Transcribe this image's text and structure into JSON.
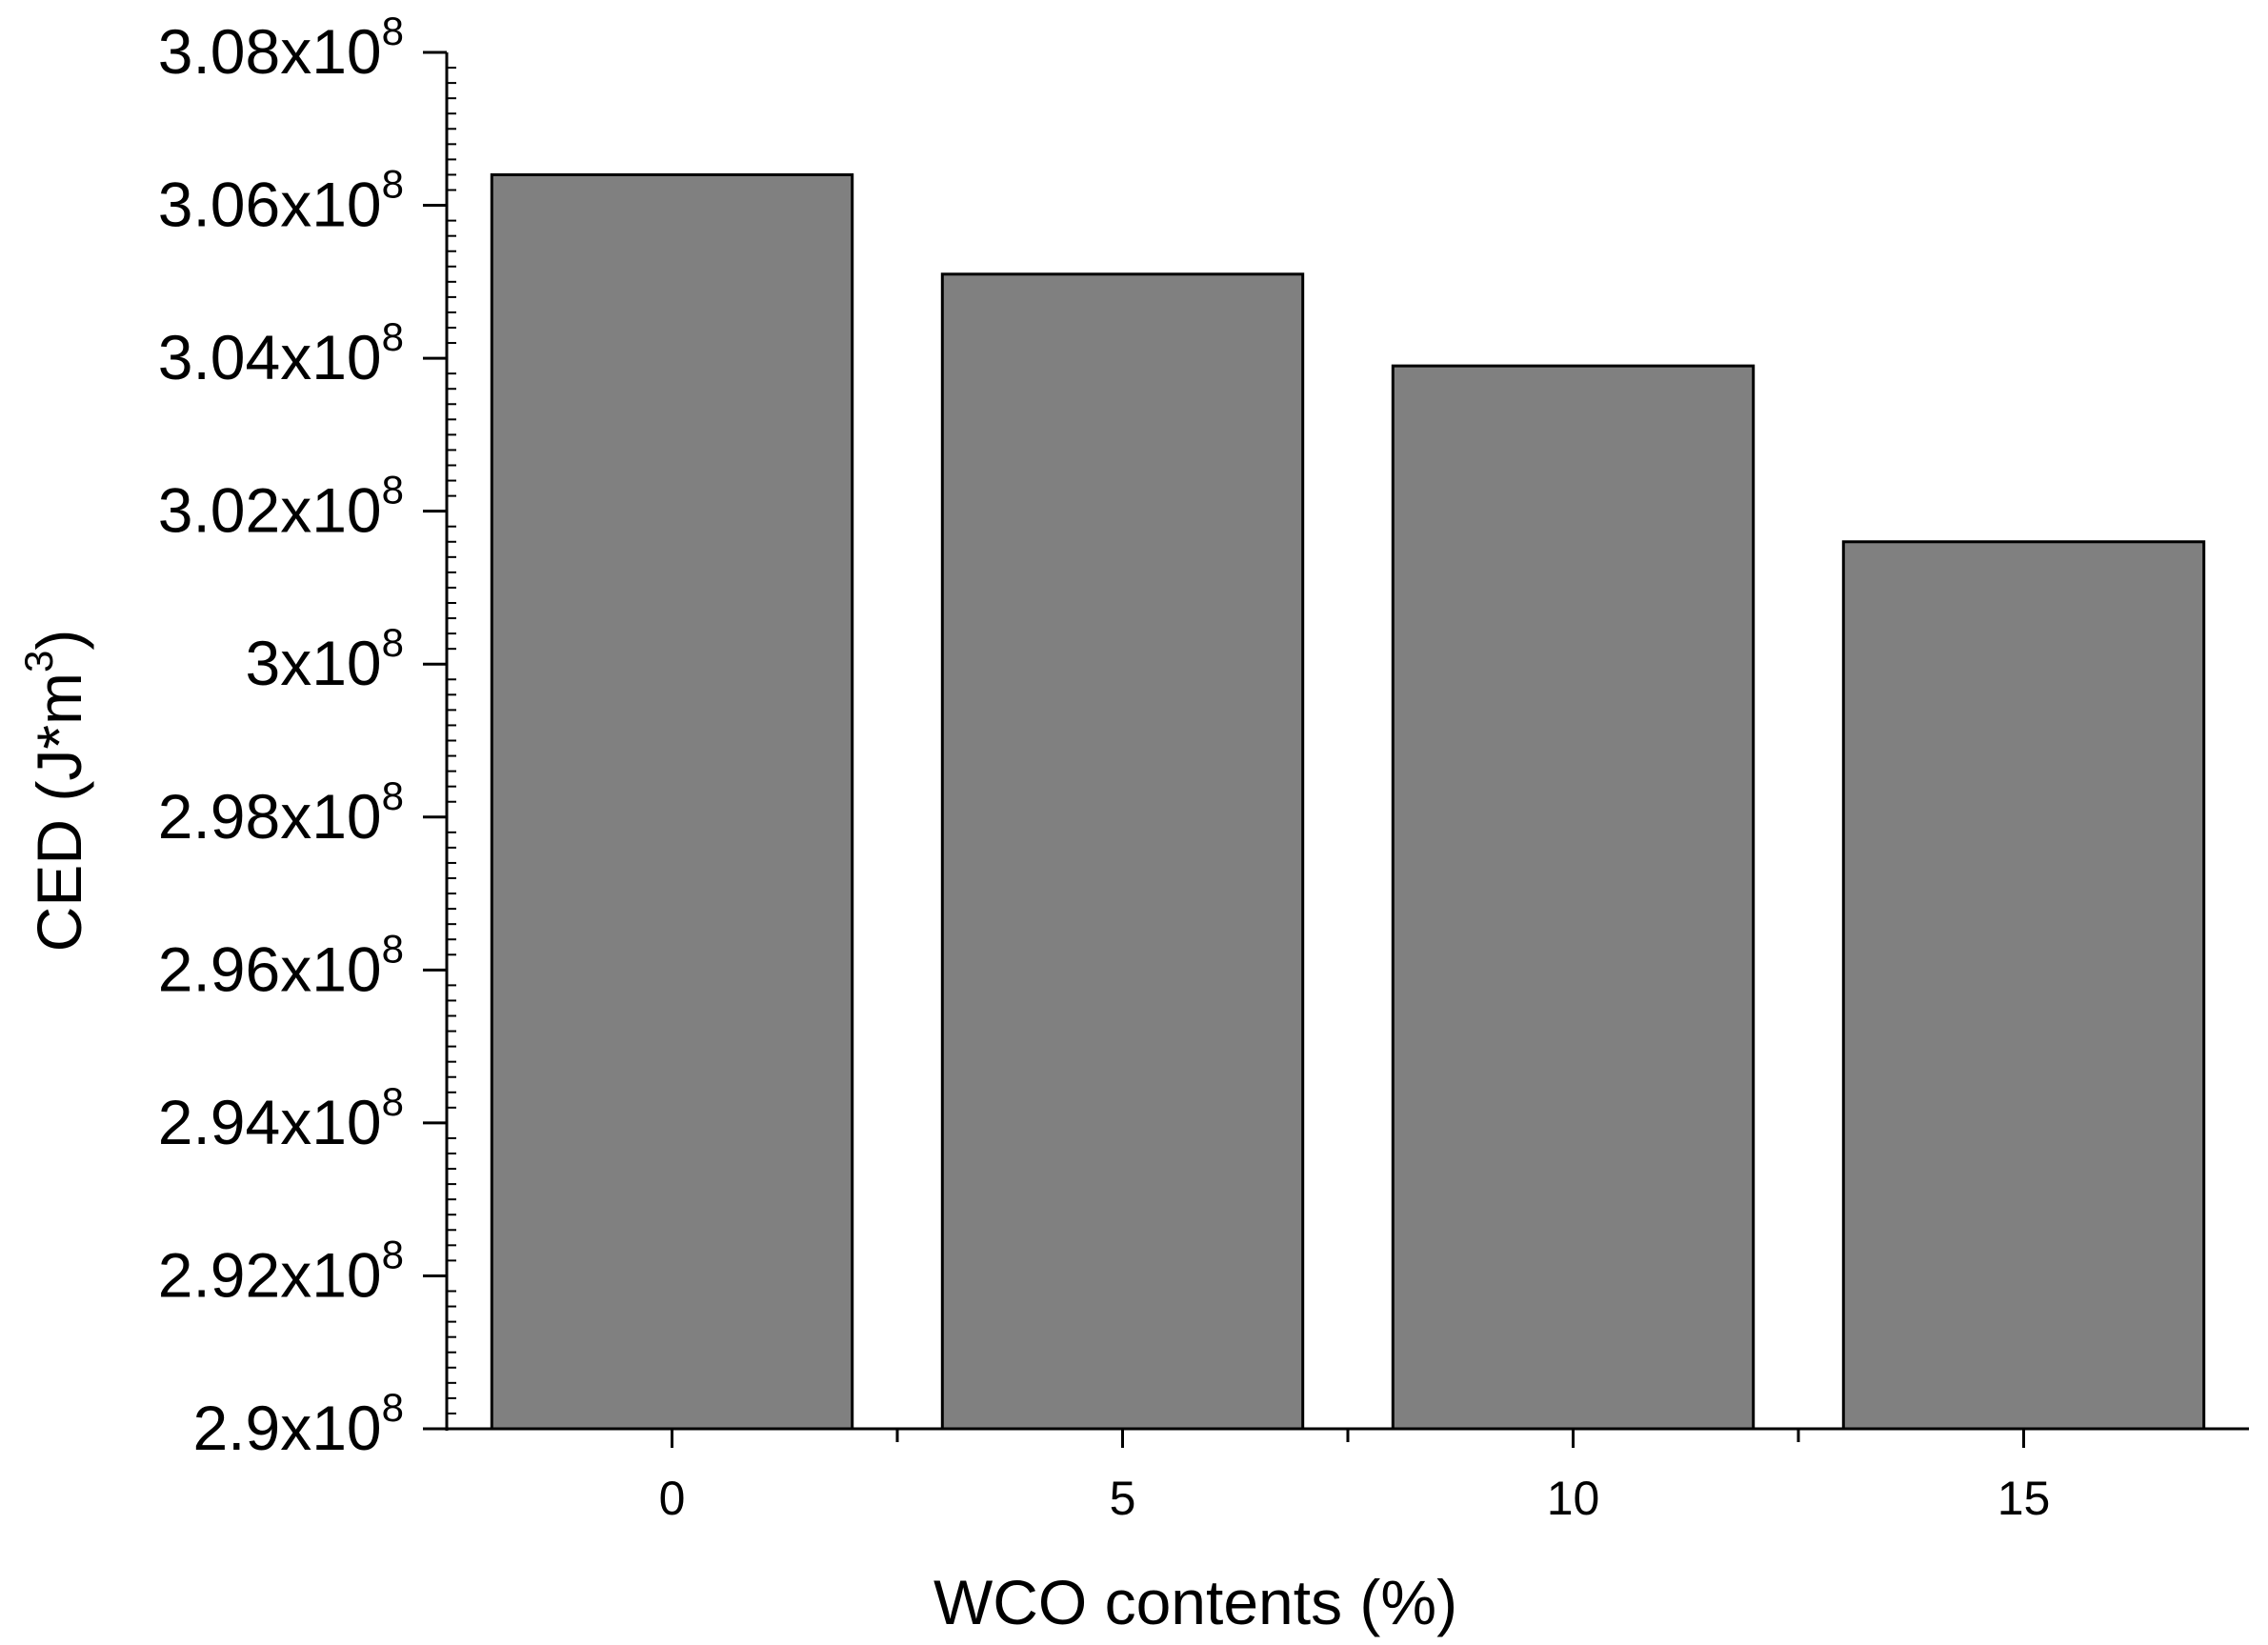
{
  "chart_data": {
    "type": "bar",
    "title": "",
    "xlabel": "WCO contents (%)",
    "ylabel": {
      "main": "CED (J*m",
      "superscript": "3",
      "close": ")"
    },
    "categories": [
      "0",
      "5",
      "10",
      "15"
    ],
    "values": [
      306400000,
      305100000,
      303900000,
      301600000
    ],
    "ylim": [
      290000000,
      308000000
    ],
    "yticks": [
      {
        "value": 290000000,
        "mantissa": "2.9",
        "base": "x10",
        "exp": "8"
      },
      {
        "value": 292000000,
        "mantissa": "2.92",
        "base": "x10",
        "exp": "8"
      },
      {
        "value": 294000000,
        "mantissa": "2.94",
        "base": "x10",
        "exp": "8"
      },
      {
        "value": 296000000,
        "mantissa": "2.96",
        "base": "x10",
        "exp": "8"
      },
      {
        "value": 298000000,
        "mantissa": "2.98",
        "base": "x10",
        "exp": "8"
      },
      {
        "value": 300000000,
        "mantissa": "3",
        "base": "x10",
        "exp": "8"
      },
      {
        "value": 302000000,
        "mantissa": "3.02",
        "base": "x10",
        "exp": "8"
      },
      {
        "value": 304000000,
        "mantissa": "3.04",
        "base": "x10",
        "exp": "8"
      },
      {
        "value": 306000000,
        "mantissa": "3.06",
        "base": "x10",
        "exp": "8"
      },
      {
        "value": 308000000,
        "mantissa": "3.08",
        "base": "x10",
        "exp": "8"
      }
    ],
    "bar_color": "#808080",
    "bar_edge_color": "#000000",
    "grid": false,
    "legend": "none"
  }
}
